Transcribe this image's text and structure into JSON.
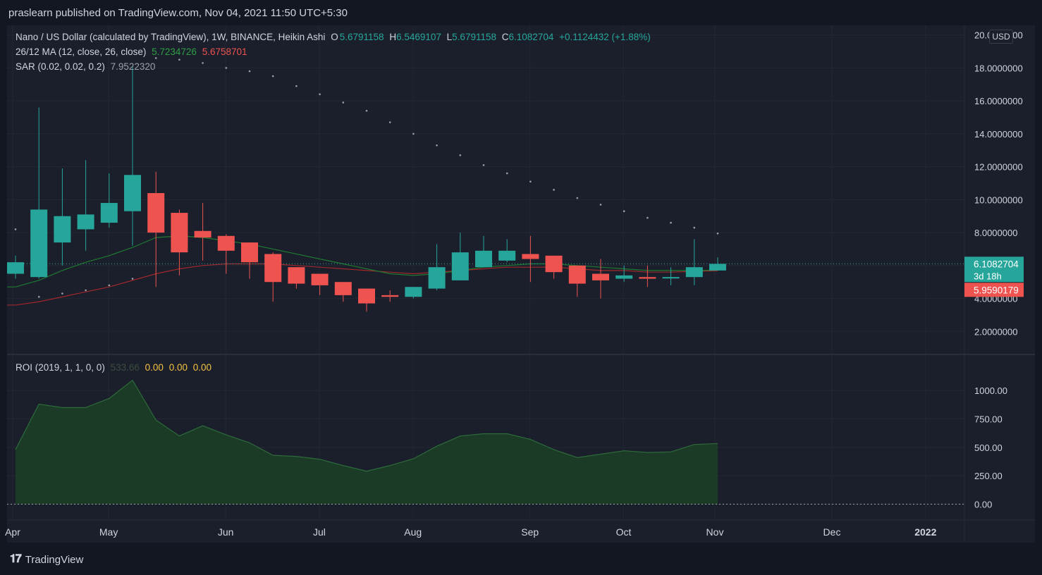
{
  "header": {
    "published": "praslearn published on TradingView.com, Nov 04, 2021 11:50 UTC+5:30"
  },
  "legend": {
    "title": "Nano / US Dollar (calculated by TradingView), 1W, BINANCE, Heikin Ashi",
    "o_label": "O",
    "o_value": "5.6791158",
    "h_label": "H",
    "h_value": "6.5469107",
    "l_label": "L",
    "l_value": "5.6791158",
    "c_label": "C",
    "c_value": "6.1082704",
    "change": "+0.1124432 (+1.88%)",
    "ma_label": "26/12 MA (12, close, 26, close)",
    "ma_fast": "5.7234726",
    "ma_slow": "5.6758701",
    "sar_label": "SAR (0.02, 0.02, 0.2)",
    "sar_value": "7.9522320",
    "roi_label": "ROI (2019, 1, 1, 0, 0)",
    "roi_value": "533.66",
    "roi_z1": "0.00",
    "roi_z2": "0.00",
    "roi_z3": "0.00"
  },
  "price_scale": {
    "currency": "USD",
    "last_price": "6.1082704",
    "countdown": "3d 18h",
    "ma_tag": "5.9590179"
  },
  "colors": {
    "up": "#26a69a",
    "down": "#ef5350",
    "ma_fast": "#1e7a31",
    "ma_slow": "#a0282c",
    "roi_fill": "#1b3b27",
    "roi_line": "#2d6b3a",
    "sar": "#9aa0a8"
  },
  "footer": {
    "brand": "TradingView"
  },
  "chart_data": [
    {
      "type": "candlestick",
      "style": "heikin-ashi",
      "y_range": [
        1.2,
        20.2
      ],
      "y_ticks": [
        "20.0000000",
        "18.0000000",
        "16.0000000",
        "14.0000000",
        "12.0000000",
        "10.0000000",
        "8.0000000",
        "6.0000000",
        "4.0000000",
        "2.0000000"
      ],
      "y_tick_values": [
        20,
        18,
        16,
        14,
        12,
        10,
        8,
        6,
        4,
        2
      ],
      "x_labels": [
        "Apr",
        "May",
        "Jun",
        "Jul",
        "Aug",
        "Sep",
        "Oct",
        "Nov",
        "Dec",
        "2022"
      ],
      "x_label_weeks": [
        0,
        4.1,
        9.1,
        13.1,
        17.1,
        22.1,
        26.1,
        30,
        35,
        39
      ],
      "candles": [
        {
          "o": 5.5,
          "h": 6.6,
          "l": 5.2,
          "c": 6.2
        },
        {
          "o": 5.3,
          "h": 15.6,
          "l": 5.2,
          "c": 9.4
        },
        {
          "o": 7.4,
          "h": 11.9,
          "l": 6.0,
          "c": 9.0
        },
        {
          "o": 8.2,
          "h": 12.4,
          "l": 6.9,
          "c": 9.1
        },
        {
          "o": 8.6,
          "h": 11.6,
          "l": 8.3,
          "c": 9.8
        },
        {
          "o": 9.3,
          "h": 18.1,
          "l": 7.2,
          "c": 11.5
        },
        {
          "o": 10.4,
          "h": 11.7,
          "l": 4.7,
          "c": 8.0
        },
        {
          "o": 9.2,
          "h": 9.4,
          "l": 5.4,
          "c": 6.8
        },
        {
          "o": 8.1,
          "h": 9.8,
          "l": 6.3,
          "c": 7.7
        },
        {
          "o": 7.8,
          "h": 7.9,
          "l": 5.5,
          "c": 6.9
        },
        {
          "o": 7.4,
          "h": 7.4,
          "l": 5.2,
          "c": 6.2
        },
        {
          "o": 6.7,
          "h": 6.8,
          "l": 3.8,
          "c": 5.0
        },
        {
          "o": 5.9,
          "h": 5.9,
          "l": 4.6,
          "c": 4.9
        },
        {
          "o": 5.5,
          "h": 5.5,
          "l": 4.2,
          "c": 4.8
        },
        {
          "o": 5.0,
          "h": 5.0,
          "l": 3.8,
          "c": 4.2
        },
        {
          "o": 4.6,
          "h": 4.6,
          "l": 3.2,
          "c": 3.7
        },
        {
          "o": 4.2,
          "h": 4.5,
          "l": 3.8,
          "c": 4.1
        },
        {
          "o": 4.1,
          "h": 4.6,
          "l": 4.0,
          "c": 4.7
        },
        {
          "o": 4.6,
          "h": 7.3,
          "l": 4.5,
          "c": 5.9
        },
        {
          "o": 5.1,
          "h": 8.0,
          "l": 5.1,
          "c": 6.8
        },
        {
          "o": 5.9,
          "h": 7.8,
          "l": 5.9,
          "c": 6.9
        },
        {
          "o": 6.3,
          "h": 7.6,
          "l": 6.2,
          "c": 6.9
        },
        {
          "o": 6.7,
          "h": 7.8,
          "l": 5.0,
          "c": 6.4
        },
        {
          "o": 6.6,
          "h": 6.6,
          "l": 5.2,
          "c": 5.6
        },
        {
          "o": 6.0,
          "h": 6.0,
          "l": 4.1,
          "c": 4.9
        },
        {
          "o": 5.5,
          "h": 6.4,
          "l": 4.0,
          "c": 5.1
        },
        {
          "o": 5.2,
          "h": 6.0,
          "l": 5.0,
          "c": 5.4
        },
        {
          "o": 5.3,
          "h": 6.0,
          "l": 4.7,
          "c": 5.2
        },
        {
          "o": 5.3,
          "h": 5.9,
          "l": 4.8,
          "c": 5.3
        },
        {
          "o": 5.3,
          "h": 7.6,
          "l": 4.8,
          "c": 5.9
        },
        {
          "o": 5.7,
          "h": 6.5,
          "l": 5.7,
          "c": 6.1
        }
      ],
      "ma_fast": [
        4.7,
        5.1,
        5.7,
        6.2,
        6.6,
        7.1,
        7.7,
        7.8,
        7.7,
        7.5,
        7.3,
        7.0,
        6.7,
        6.4,
        6.1,
        5.8,
        5.5,
        5.4,
        5.5,
        5.7,
        5.9,
        6.0,
        6.1,
        6.1,
        6.0,
        5.9,
        5.8,
        5.7,
        5.7,
        5.7,
        5.72
      ],
      "ma_slow": [
        3.6,
        3.8,
        4.1,
        4.4,
        4.7,
        5.1,
        5.5,
        5.8,
        6.0,
        6.1,
        6.1,
        6.1,
        6.0,
        5.9,
        5.8,
        5.7,
        5.6,
        5.5,
        5.6,
        5.7,
        5.8,
        5.9,
        5.9,
        5.9,
        5.8,
        5.7,
        5.7,
        5.6,
        5.6,
        5.65,
        5.68
      ],
      "sar": [
        8.2,
        4.1,
        4.3,
        4.5,
        4.8,
        5.2,
        18.6,
        18.5,
        18.3,
        18.0,
        17.8,
        17.5,
        16.9,
        16.4,
        15.9,
        15.4,
        14.7,
        14.0,
        13.3,
        12.7,
        12.1,
        11.6,
        11.1,
        10.6,
        10.1,
        9.7,
        9.3,
        8.9,
        8.6,
        8.3,
        7.95
      ],
      "last_price": 6.1082704
    },
    {
      "type": "area",
      "title": "ROI (2019, 1, 1, 0, 0)",
      "y_range": [
        -90,
        1150
      ],
      "y_ticks": [
        "1000.00",
        "750.00",
        "500.00",
        "250.00",
        "0.00"
      ],
      "y_tick_values": [
        1000,
        750,
        500,
        250,
        0
      ],
      "values": [
        480,
        880,
        850,
        850,
        930,
        1090,
        740,
        600,
        690,
        610,
        540,
        430,
        420,
        395,
        340,
        290,
        340,
        400,
        510,
        600,
        620,
        620,
        570,
        480,
        410,
        440,
        470,
        455,
        460,
        525,
        533.66
      ]
    }
  ]
}
